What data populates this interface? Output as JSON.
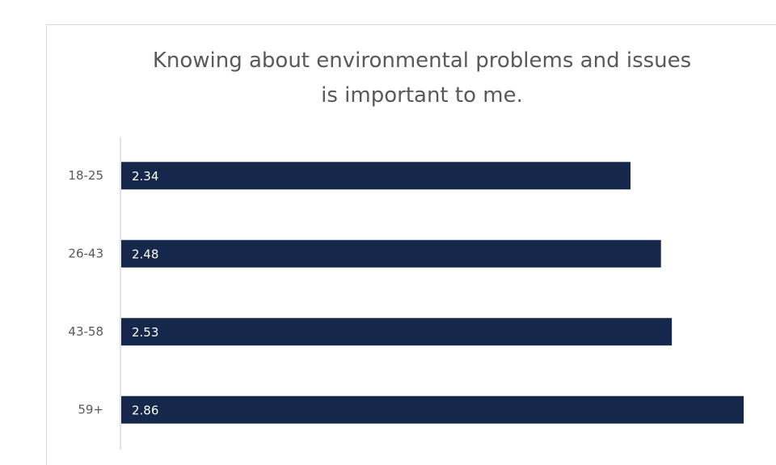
{
  "chart_data": {
    "type": "bar",
    "orientation": "horizontal",
    "title": "Knowing about environmental problems and issues is important to me.",
    "categories": [
      "18-25",
      "26-43",
      "43-58",
      "59+"
    ],
    "values": [
      2.34,
      2.48,
      2.53,
      2.86
    ],
    "color": "#15284b"
  }
}
